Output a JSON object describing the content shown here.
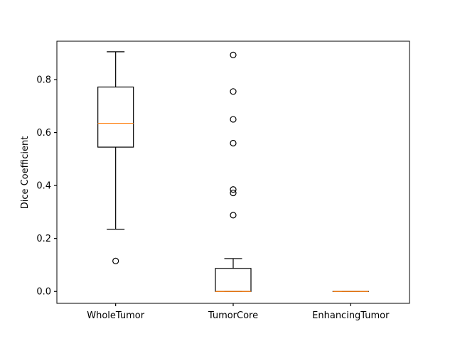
{
  "chart_data": {
    "type": "box",
    "ylabel": "Dice Coefficient",
    "ylim": [
      -0.045,
      0.945
    ],
    "yticks": [
      "0.0",
      "0.2",
      "0.4",
      "0.6",
      "0.8"
    ],
    "categories": [
      "WholeTumor",
      "TumorCore",
      "EnhancingTumor"
    ],
    "boxes": [
      {
        "name": "WholeTumor",
        "whisker_low": 0.235,
        "q1": 0.545,
        "median": 0.635,
        "q3": 0.772,
        "whisker_high": 0.905,
        "outliers": [
          0.115
        ]
      },
      {
        "name": "TumorCore",
        "whisker_low": 0.0,
        "q1": 0.0,
        "median": 0.0,
        "q3": 0.087,
        "whisker_high": 0.124,
        "outliers": [
          0.288,
          0.372,
          0.385,
          0.56,
          0.65,
          0.755,
          0.893
        ]
      },
      {
        "name": "EnhancingTumor",
        "whisker_low": 0.0,
        "q1": 0.0,
        "median": 0.0,
        "q3": 0.0,
        "whisker_high": 0.0,
        "outliers": []
      }
    ],
    "colors": {
      "box": "#000000",
      "median": "#ff7f0e",
      "background": "#ffffff"
    },
    "grid": false,
    "legend": "none"
  }
}
